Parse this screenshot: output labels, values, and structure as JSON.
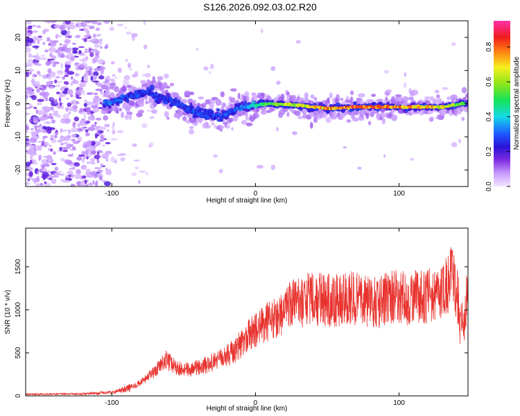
{
  "title": "S126.2026.092.03.02.R20",
  "colors": {
    "snr_line": "#e8332e",
    "frame": "#000000"
  },
  "chart_data": [
    {
      "type": "heatmap",
      "name": "spectrogram",
      "xlabel": "Height of straight line (km)",
      "ylabel": "Frequency (Hz)",
      "xlim": [
        -160,
        148
      ],
      "ylim": [
        -25,
        25
      ],
      "x_ticks": [
        -100,
        0,
        100
      ],
      "y_ticks": [
        -20,
        -10,
        0,
        10,
        20
      ],
      "colorbar": {
        "label": "Normalized spectral amplitude",
        "range": [
          0,
          0.95
        ],
        "ticks": [
          "0.0",
          "0.2",
          "0.4",
          "0.6",
          "0.8"
        ],
        "tick_values": [
          0.0,
          0.2,
          0.4,
          0.6,
          0.8
        ]
      },
      "ridge": [
        {
          "x": -105,
          "f": 0.0,
          "amp": 0.35
        },
        {
          "x": -90,
          "f": 2.0,
          "amp": 0.3
        },
        {
          "x": -75,
          "f": 3.5,
          "amp": 0.28
        },
        {
          "x": -60,
          "f": 1.0,
          "amp": 0.3
        },
        {
          "x": -40,
          "f": -3.0,
          "amp": 0.3
        },
        {
          "x": -25,
          "f": -4.0,
          "amp": 0.3
        },
        {
          "x": -10,
          "f": -1.0,
          "amp": 0.35
        },
        {
          "x": 10,
          "f": 0.0,
          "amp": 0.6
        },
        {
          "x": 30,
          "f": -0.5,
          "amp": 0.7
        },
        {
          "x": 50,
          "f": -1.5,
          "amp": 0.8
        },
        {
          "x": 70,
          "f": -1.0,
          "amp": 0.9
        },
        {
          "x": 90,
          "f": -1.0,
          "amp": 0.85
        },
        {
          "x": 110,
          "f": -1.0,
          "amp": 0.8
        },
        {
          "x": 130,
          "f": -1.0,
          "amp": 0.75
        },
        {
          "x": 145,
          "f": 0.0,
          "amp": 0.6
        }
      ]
    },
    {
      "type": "line",
      "name": "snr",
      "xlabel": "Height of straight line (km)",
      "ylabel": "SNR (10 * v/v)",
      "xlim": [
        -160,
        148
      ],
      "ylim": [
        0,
        1950
      ],
      "x_ticks": [
        -100,
        0,
        100
      ],
      "y_ticks": [
        0,
        500,
        1000,
        1500
      ],
      "series": [
        {
          "name": "SNR",
          "x": [
            -160,
            -140,
            -120,
            -100,
            -90,
            -80,
            -70,
            -62,
            -55,
            -45,
            -35,
            -25,
            -15,
            -5,
            5,
            15,
            25,
            35,
            45,
            55,
            65,
            75,
            85,
            95,
            105,
            115,
            125,
            132,
            137,
            142,
            145,
            148
          ],
          "y": [
            20,
            20,
            25,
            40,
            80,
            150,
            280,
            420,
            320,
            300,
            360,
            420,
            520,
            700,
            820,
            920,
            1050,
            1120,
            1130,
            1100,
            1150,
            1100,
            1080,
            1150,
            1130,
            1150,
            1180,
            1250,
            1400,
            1050,
            800,
            1200
          ]
        }
      ]
    }
  ]
}
